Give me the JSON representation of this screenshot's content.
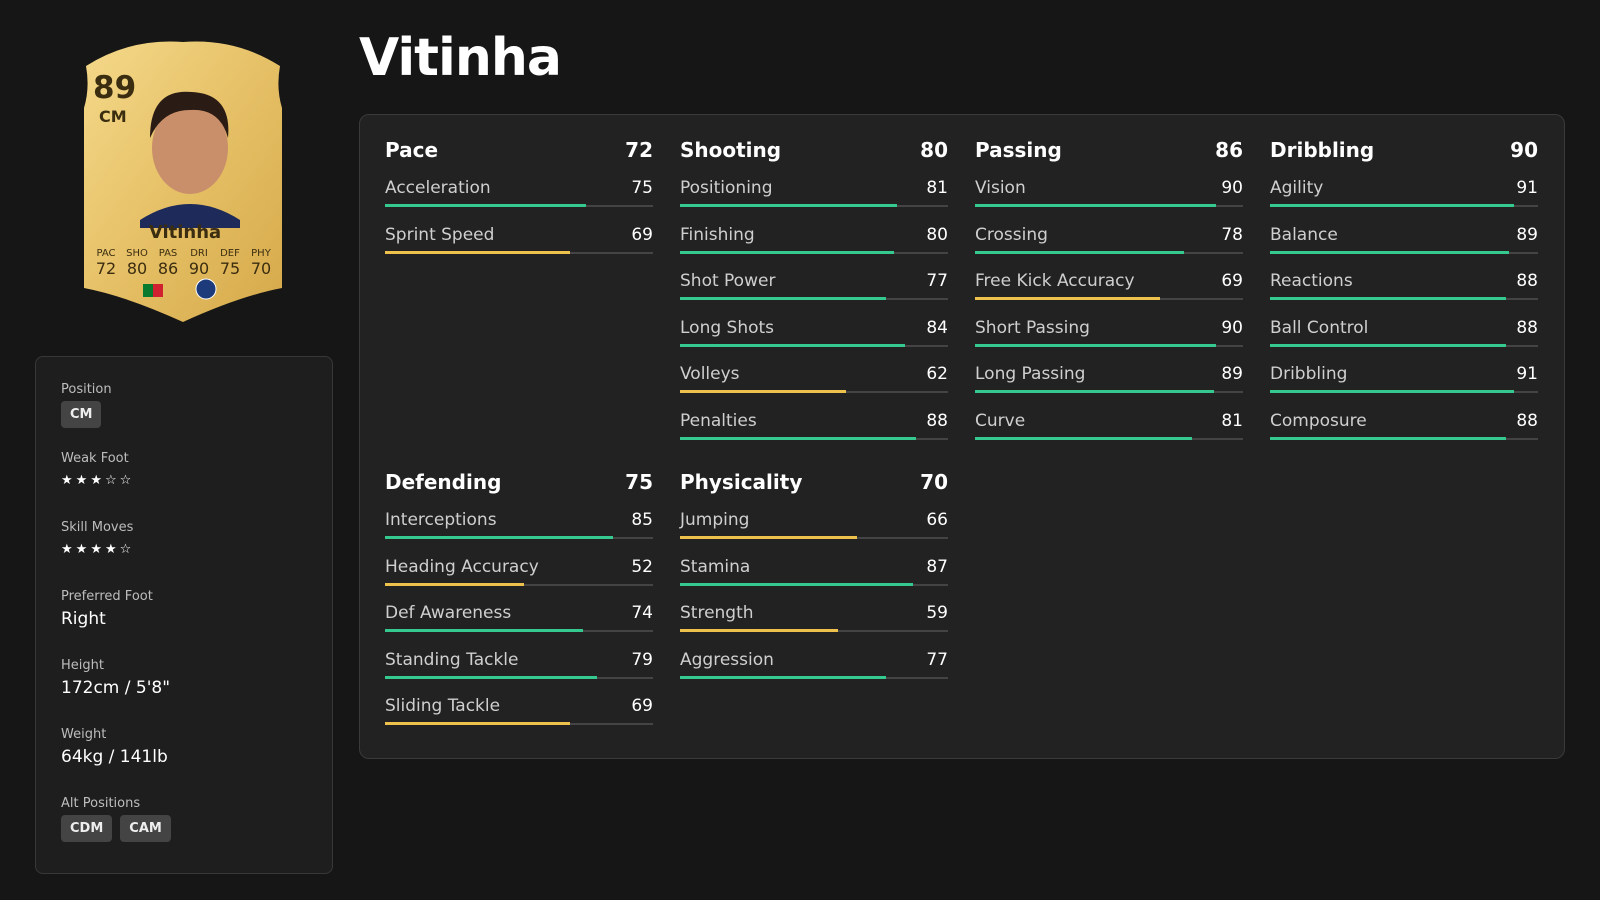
{
  "title": "Vitinha",
  "card": {
    "rating": 89,
    "position": "CM",
    "name": "Vitinha",
    "stats": [
      {
        "label": "PAC",
        "value": 72
      },
      {
        "label": "SHO",
        "value": 80
      },
      {
        "label": "PAS",
        "value": 86
      },
      {
        "label": "DRI",
        "value": 90
      },
      {
        "label": "DEF",
        "value": 75
      },
      {
        "label": "PHY",
        "value": 70
      }
    ]
  },
  "info": {
    "position": {
      "label": "Position",
      "tags": [
        "CM"
      ]
    },
    "weak_foot": {
      "label": "Weak Foot",
      "stars": 3,
      "max": 5
    },
    "skill_moves": {
      "label": "Skill Moves",
      "stars": 4,
      "max": 5
    },
    "preferred_foot": {
      "label": "Preferred Foot",
      "value": "Right"
    },
    "height": {
      "label": "Height",
      "value": "172cm / 5'8\""
    },
    "weight": {
      "label": "Weight",
      "value": "64kg / 141lb"
    },
    "alt_positions": {
      "label": "Alt Positions",
      "tags": [
        "CDM",
        "CAM"
      ]
    }
  },
  "stat_scale": [
    0,
    100
  ],
  "bar_colors": {
    "threshold": 70,
    "high": "#35c98f",
    "low": "#eec04c"
  },
  "groups": [
    {
      "name": "Pace",
      "value": 72,
      "attributes": [
        {
          "name": "Acceleration",
          "value": 75
        },
        {
          "name": "Sprint Speed",
          "value": 69
        }
      ]
    },
    {
      "name": "Shooting",
      "value": 80,
      "attributes": [
        {
          "name": "Positioning",
          "value": 81
        },
        {
          "name": "Finishing",
          "value": 80
        },
        {
          "name": "Shot Power",
          "value": 77
        },
        {
          "name": "Long Shots",
          "value": 84
        },
        {
          "name": "Volleys",
          "value": 62
        },
        {
          "name": "Penalties",
          "value": 88
        }
      ]
    },
    {
      "name": "Passing",
      "value": 86,
      "attributes": [
        {
          "name": "Vision",
          "value": 90
        },
        {
          "name": "Crossing",
          "value": 78
        },
        {
          "name": "Free Kick Accuracy",
          "value": 69
        },
        {
          "name": "Short Passing",
          "value": 90
        },
        {
          "name": "Long Passing",
          "value": 89
        },
        {
          "name": "Curve",
          "value": 81
        }
      ]
    },
    {
      "name": "Dribbling",
      "value": 90,
      "attributes": [
        {
          "name": "Agility",
          "value": 91
        },
        {
          "name": "Balance",
          "value": 89
        },
        {
          "name": "Reactions",
          "value": 88
        },
        {
          "name": "Ball Control",
          "value": 88
        },
        {
          "name": "Dribbling",
          "value": 91
        },
        {
          "name": "Composure",
          "value": 88
        }
      ]
    },
    {
      "name": "Defending",
      "value": 75,
      "attributes": [
        {
          "name": "Interceptions",
          "value": 85
        },
        {
          "name": "Heading Accuracy",
          "value": 52
        },
        {
          "name": "Def Awareness",
          "value": 74
        },
        {
          "name": "Standing Tackle",
          "value": 79
        },
        {
          "name": "Sliding Tackle",
          "value": 69
        }
      ]
    },
    {
      "name": "Physicality",
      "value": 70,
      "attributes": [
        {
          "name": "Jumping",
          "value": 66
        },
        {
          "name": "Stamina",
          "value": 87
        },
        {
          "name": "Strength",
          "value": 59
        },
        {
          "name": "Aggression",
          "value": 77
        }
      ]
    }
  ]
}
